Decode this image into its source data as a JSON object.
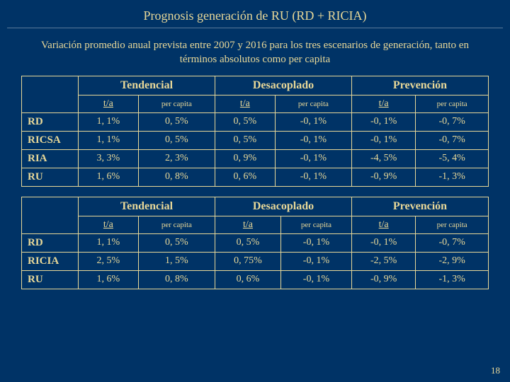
{
  "title": "Prognosis generación de RU (RD + RICIA)",
  "subtitle": "Variación promedio anual prevista entre 2007 y 2016 para los tres escenarios de generación, tanto en términos absolutos como per capita",
  "scenarios": [
    "Tendencial",
    "Desacoplado",
    "Prevención"
  ],
  "subheaders": {
    "ta": "t/a",
    "pc": "per capita"
  },
  "table1": {
    "rows": [
      {
        "label": "RD",
        "cells": [
          "1, 1%",
          "0, 5%",
          "0, 5%",
          "-0, 1%",
          "-0, 1%",
          "-0, 7%"
        ]
      },
      {
        "label": "RICSA",
        "cells": [
          "1, 1%",
          "0, 5%",
          "0, 5%",
          "-0, 1%",
          "-0, 1%",
          "-0, 7%"
        ]
      },
      {
        "label": "RIA",
        "cells": [
          "3, 3%",
          "2, 3%",
          "0, 9%",
          "-0, 1%",
          "-4, 5%",
          "-5, 4%"
        ]
      },
      {
        "label": "RU",
        "cells": [
          "1, 6%",
          "0, 8%",
          "0, 6%",
          "-0, 1%",
          "-0, 9%",
          "-1, 3%"
        ]
      }
    ]
  },
  "table2": {
    "rows": [
      {
        "label": "RD",
        "cells": [
          "1, 1%",
          "0, 5%",
          "0, 5%",
          "-0, 1%",
          "-0, 1%",
          "-0, 7%"
        ]
      },
      {
        "label": "RICIA",
        "cells": [
          "2, 5%",
          "1, 5%",
          "0, 75%",
          "-0, 1%",
          "-2, 5%",
          "-2, 9%"
        ]
      },
      {
        "label": "RU",
        "cells": [
          "1, 6%",
          "0, 8%",
          "0, 6%",
          "-0, 1%",
          "-0, 9%",
          "-1, 3%"
        ]
      }
    ]
  },
  "pagenum": "18"
}
